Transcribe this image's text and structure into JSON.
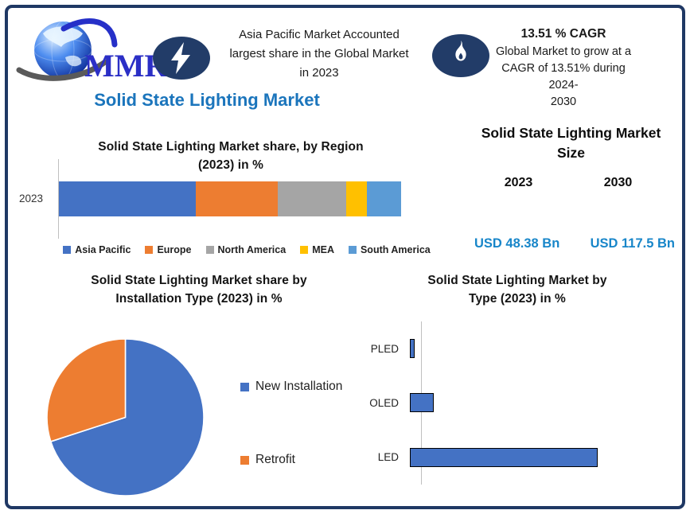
{
  "brand": {
    "name": "MMR"
  },
  "colors": {
    "frame_border": "#1F3864",
    "icon_navy": "#223C68",
    "title_blue": "#1B75BC",
    "value_blue": "#1886C9",
    "bar_blue": "#4472C4",
    "bar_orange": "#ED7D31"
  },
  "header": {
    "highlight_left": {
      "icon": "lightning-icon",
      "lines": [
        "Asia Pacific Market Accounted",
        "largest share in the Global Market",
        "in 2023"
      ]
    },
    "highlight_right": {
      "icon": "flame-icon",
      "heading": "13.51 % CAGR",
      "lines": [
        "Global Market to grow at a",
        "CAGR of 13.51% during 2024-",
        "2030"
      ]
    },
    "page_title": "Solid State Lighting Market"
  },
  "market_size": {
    "title_lines": [
      "Solid State Lighting Market",
      "Size"
    ],
    "years": [
      "2023",
      "2030"
    ],
    "values": [
      "USD 48.38 Bn",
      "USD 117.5 Bn"
    ]
  },
  "chart_data": [
    {
      "id": "region_share",
      "type": "bar",
      "subtype": "horizontal-stacked",
      "title_lines": [
        "Solid State Lighting  Market share, by Region",
        "(2023) in %"
      ],
      "categories": [
        "2023"
      ],
      "series": [
        {
          "name": "Asia Pacific",
          "values": [
            40
          ],
          "color": "#4472C4"
        },
        {
          "name": "Europe",
          "values": [
            24
          ],
          "color": "#ED7D31"
        },
        {
          "name": "North America",
          "values": [
            20
          ],
          "color": "#A5A5A5"
        },
        {
          "name": "MEA",
          "values": [
            6
          ],
          "color": "#FFC000"
        },
        {
          "name": "South America",
          "values": [
            10
          ],
          "color": "#5B9BD5"
        }
      ],
      "xlim": [
        0,
        100
      ],
      "grid": false,
      "legend_position": "bottom"
    },
    {
      "id": "installation_type",
      "type": "pie",
      "title_lines": [
        "Solid State Lighting Market share by",
        "Installation Type (2023) in %"
      ],
      "slices": [
        {
          "label": "New Installation",
          "value": 70,
          "color": "#4472C4"
        },
        {
          "label": "Retrofit",
          "value": 30,
          "color": "#ED7D31"
        }
      ],
      "start_angle_deg": 0,
      "legend_position": "right"
    },
    {
      "id": "type_share",
      "type": "bar",
      "subtype": "horizontal",
      "title_lines": [
        "Solid State Lighting Market by",
        "Type  (2023) in %"
      ],
      "categories": [
        "PLED",
        "OLED",
        "LED"
      ],
      "values": [
        2,
        11,
        87
      ],
      "bar_color": "#4472C4",
      "bar_border": "#000000",
      "xlim": [
        0,
        90
      ],
      "grid": false
    }
  ]
}
